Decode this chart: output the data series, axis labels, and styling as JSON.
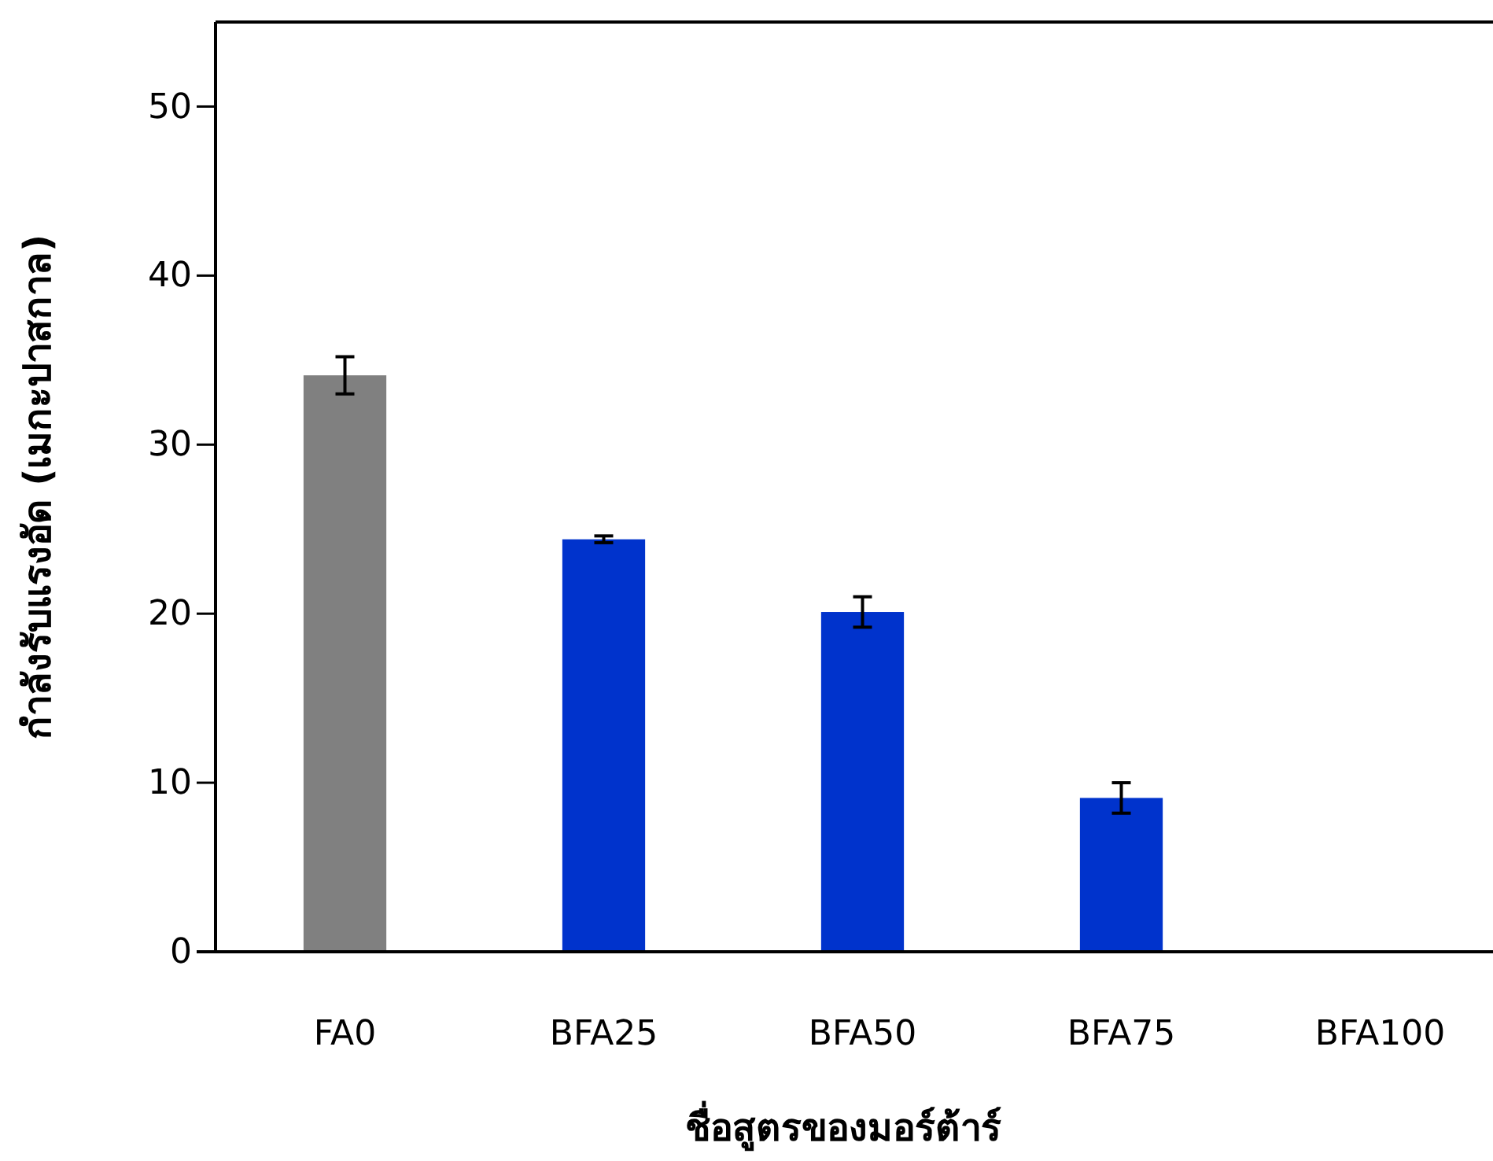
{
  "chart_data": {
    "type": "bar",
    "xlabel": "ชื่อสูตรของมอร์ต้าร์",
    "ylabel": "กำลังรับแรงอัด (เมกะปาสกาล)",
    "categories": [
      "FA0",
      "BFA25",
      "BFA50",
      "BFA75",
      "BFA100"
    ],
    "values": [
      34.1,
      24.4,
      20.1,
      9.1,
      0
    ],
    "colors": [
      "#808080",
      "#0033cc",
      "#0033cc",
      "#0033cc",
      "#0033cc"
    ],
    "errors": [
      1.1,
      0.2,
      0.9,
      0.9,
      null
    ],
    "ylim": [
      0,
      55
    ],
    "yticks": [
      0,
      10,
      20,
      30,
      40,
      50
    ],
    "grid": false
  }
}
